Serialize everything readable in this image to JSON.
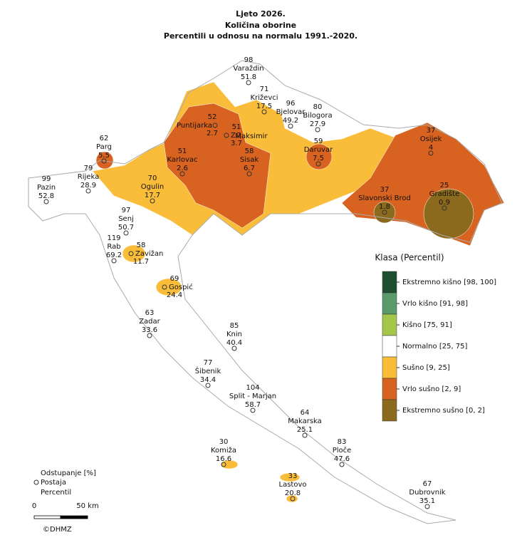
{
  "title": [
    "Ljeto 2026.",
    "Količina oborine",
    "Percentili u odnosu na normalu 1991.-2020."
  ],
  "stations": [
    {
      "deviation": "98",
      "name": "Varaždin",
      "percentile": "51.8"
    },
    {
      "deviation": "71",
      "name": "Križevci",
      "percentile": "17.5"
    },
    {
      "deviation": "96",
      "name": "Bjelovar",
      "percentile": "49.2"
    },
    {
      "deviation": "80",
      "name": "Bilogora",
      "percentile": "27.9"
    },
    {
      "deviation": "52",
      "name": "Puntijarka",
      "percentile": "2.7"
    },
    {
      "deviation": "51",
      "name": "ZG",
      "percentile": "3.7"
    },
    {
      "name": "Maksimir"
    },
    {
      "deviation": "62",
      "name": "Parg",
      "percentile": "5.5"
    },
    {
      "deviation": "79",
      "name": "Rijeka",
      "percentile": "28.9"
    },
    {
      "deviation": "99",
      "name": "Pazin",
      "percentile": "52.8"
    },
    {
      "deviation": "51",
      "name": "Karlovac",
      "percentile": "2.6"
    },
    {
      "deviation": "58",
      "name": "Sisak",
      "percentile": "6.7"
    },
    {
      "deviation": "59",
      "name": "Daruvar",
      "percentile": "7.5"
    },
    {
      "deviation": "37",
      "name": "Osijek",
      "percentile": "4"
    },
    {
      "deviation": "70",
      "name": "Ogulin",
      "percentile": "17.7"
    },
    {
      "deviation": "37",
      "name": "Slavonski Brod",
      "percentile": "1.8"
    },
    {
      "deviation": "25",
      "name": "Gradište",
      "percentile": "0.9"
    },
    {
      "deviation": "97",
      "name": "Senj",
      "percentile": "50.7"
    },
    {
      "deviation": "119",
      "name": "Rab",
      "percentile": "69.2"
    },
    {
      "deviation": "58",
      "name": "Zavižan",
      "percentile": "11.7"
    },
    {
      "deviation": "69",
      "name": "Gospić",
      "percentile": "24.4"
    },
    {
      "deviation": "63",
      "name": "Zadar",
      "percentile": "33.6"
    },
    {
      "deviation": "85",
      "name": "Knin",
      "percentile": "40.4"
    },
    {
      "deviation": "77",
      "name": "Šibenik",
      "percentile": "34.4"
    },
    {
      "deviation": "104",
      "name": "Split - Marjan",
      "percentile": "58.7"
    },
    {
      "deviation": "64",
      "name": "Makarska",
      "percentile": "25.1"
    },
    {
      "deviation": "83",
      "name": "Ploče",
      "percentile": "47.6"
    },
    {
      "deviation": "30",
      "name": "Komiža",
      "percentile": "16.6"
    },
    {
      "deviation": "33",
      "name": "Lastovo",
      "percentile": "20.8"
    },
    {
      "deviation": "67",
      "name": "Dubrovnik",
      "percentile": "35.1"
    }
  ],
  "legend": {
    "title": "Klasa (Percentil)",
    "classes": [
      {
        "label": "Ekstremno kišno [98, 100]",
        "color": "#1e4f31"
      },
      {
        "label": "Vrlo kišno [91, 98]",
        "color": "#5b9a6b"
      },
      {
        "label": "Kišno [75, 91]",
        "color": "#a3c64b"
      },
      {
        "label": "Normalno [25, 75]",
        "color": "#ffffff"
      },
      {
        "label": "Sušno [9, 25]",
        "color": "#f9bd3a"
      },
      {
        "label": "Vrlo sušno [2, 9]",
        "color": "#d8621f"
      },
      {
        "label": "Ekstremno sušno [0, 2]",
        "color": "#8b6a1d"
      }
    ]
  },
  "key": {
    "deviation": "Odstupanje [%]",
    "station": "Postaja",
    "percentile": "Percentil"
  },
  "scale": {
    "start": "0",
    "end": "50 km"
  },
  "copyright": "©DHMZ"
}
